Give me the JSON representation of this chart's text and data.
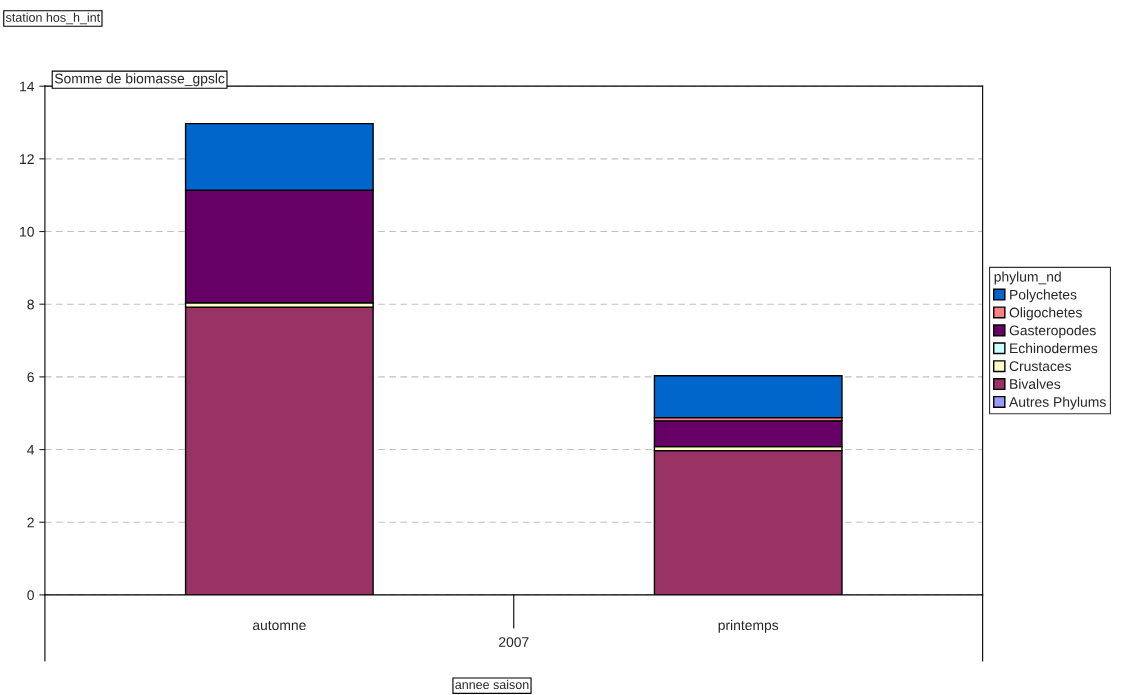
{
  "chart_data": {
    "type": "bar",
    "stacked": true,
    "ylabel": "Somme de biomasse_gpslc",
    "categories": [
      "automne",
      "printemps"
    ],
    "series": [
      {
        "name": "Autres Phylums",
        "color": "#9999ff",
        "values": [
          null,
          null
        ]
      },
      {
        "name": "Bivalves",
        "color": "#993366",
        "values": [
          7.92,
          3.97
        ]
      },
      {
        "name": "Crustaces",
        "color": "#ffffcc",
        "values": [
          0.12,
          0.11
        ]
      },
      {
        "name": "Echinodermes",
        "color": "#ccffff",
        "values": [
          null,
          null
        ]
      },
      {
        "name": "Gasteropodes",
        "color": "#660066",
        "values": [
          3.1,
          0.71
        ]
      },
      {
        "name": "Oligochetes",
        "color": "#ff8080",
        "values": [
          null,
          0.09
        ]
      },
      {
        "name": "Polychetes",
        "color": "#0066cc",
        "values": [
          1.83,
          1.15
        ]
      }
    ],
    "ylim": [
      0,
      14
    ],
    "yticks": [
      0,
      2,
      4,
      6,
      8,
      10,
      12,
      14
    ],
    "grid": "y",
    "legend": "right",
    "legend_title": "phylum_nd",
    "annotations": [
      "2007",
      "station hos_h_int",
      "annee saison"
    ]
  }
}
